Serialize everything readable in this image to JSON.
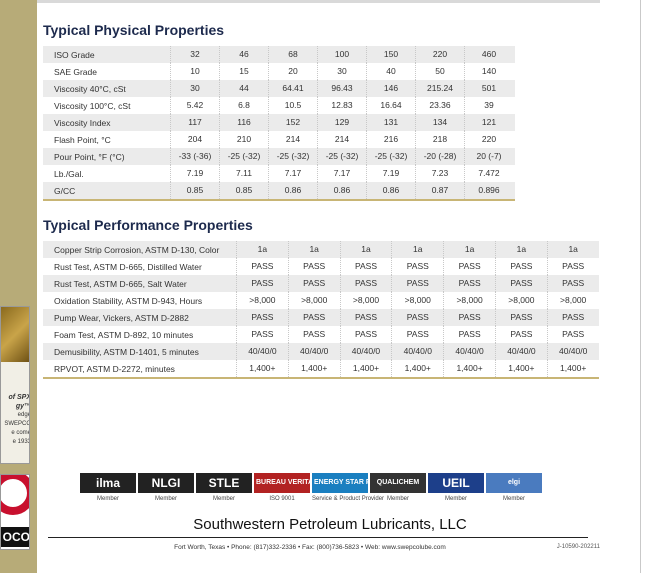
{
  "left_panel": {
    "texts": [
      "of SPX",
      "gy™",
      "edge",
      "SWEPCO",
      "e come",
      "e 1933"
    ],
    "logo_text": "OCO"
  },
  "physical": {
    "title": "Typical Physical Properties",
    "rows": [
      [
        "ISO Grade",
        "32",
        "46",
        "68",
        "100",
        "150",
        "220",
        "460"
      ],
      [
        "SAE Grade",
        "10",
        "15",
        "20",
        "30",
        "40",
        "50",
        "140"
      ],
      [
        "Viscosity 40°C, cSt",
        "30",
        "44",
        "64.41",
        "96.43",
        "146",
        "215.24",
        "501"
      ],
      [
        "Viscosity 100°C, cSt",
        "5.42",
        "6.8",
        "10.5",
        "12.83",
        "16.64",
        "23.36",
        "39"
      ],
      [
        "Viscosity Index",
        "117",
        "116",
        "152",
        "129",
        "131",
        "134",
        "121"
      ],
      [
        "Flash Point, °C",
        "204",
        "210",
        "214",
        "214",
        "216",
        "218",
        "220"
      ],
      [
        "Pour Point, °F (°C)",
        "-33 (-36)",
        "-25 (-32)",
        "-25 (-32)",
        "-25 (-32)",
        "-25 (-32)",
        "-20 (-28)",
        "20 (-7)"
      ],
      [
        "Lb./Gal.",
        "7.19",
        "7.11",
        "7.17",
        "7.17",
        "7.19",
        "7.23",
        "7.472"
      ],
      [
        "G/CC",
        "0.85",
        "0.85",
        "0.86",
        "0.86",
        "0.86",
        "0.87",
        "0.896"
      ]
    ]
  },
  "performance": {
    "title": "Typical Performance Properties",
    "rows": [
      [
        "Copper Strip Corrosion, ASTM D-130, Color",
        "1a",
        "1a",
        "1a",
        "1a",
        "1a",
        "1a",
        "1a"
      ],
      [
        "Rust Test, ASTM D-665, Distilled Water",
        "PASS",
        "PASS",
        "PASS",
        "PASS",
        "PASS",
        "PASS",
        "PASS"
      ],
      [
        "Rust Test, ASTM D-665, Salt Water",
        "PASS",
        "PASS",
        "PASS",
        "PASS",
        "PASS",
        "PASS",
        "PASS"
      ],
      [
        "Oxidation Stability, ASTM D-943, Hours",
        ">8,000",
        ">8,000",
        ">8,000",
        ">8,000",
        ">8,000",
        ">8,000",
        ">8,000"
      ],
      [
        "Pump Wear, Vickers, ASTM D-2882",
        "PASS",
        "PASS",
        "PASS",
        "PASS",
        "PASS",
        "PASS",
        "PASS"
      ],
      [
        "Foam Test, ASTM D-892, 10 minutes",
        "PASS",
        "PASS",
        "PASS",
        "PASS",
        "PASS",
        "PASS",
        "PASS"
      ],
      [
        "Demusibility, ASTM D-1401, 5 minutes",
        "40/40/0",
        "40/40/0",
        "40/40/0",
        "40/40/0",
        "40/40/0",
        "40/40/0",
        "40/40/0"
      ],
      [
        "RPVOT, ASTM D-2272, minutes",
        "1,400+",
        "1,400+",
        "1,400+",
        "1,400+",
        "1,400+",
        "1,400+",
        "1,400+"
      ]
    ]
  },
  "logos": [
    {
      "name": "ilma",
      "caption": "Member"
    },
    {
      "name": "NLGI",
      "caption": "Member"
    },
    {
      "name": "STLE",
      "caption": "Member"
    },
    {
      "name": "BUREAU VERITAS",
      "caption": "ISO 9001"
    },
    {
      "name": "ENERGY STAR PARTNER",
      "caption": "Service & Product Provider"
    },
    {
      "name": "QUALICHEM",
      "caption": "Member"
    },
    {
      "name": "UEIL",
      "caption": "Member"
    },
    {
      "name": "elgi",
      "caption": "Member"
    }
  ],
  "footer": {
    "company": "Southwestern Petroleum Lubricants, LLC",
    "address": "Fort Worth, Texas • Phone: (817)332-2336 • Fax: (800)736-5823 • Web: www.swepcolube.com",
    "code": "J-10590-202211"
  }
}
